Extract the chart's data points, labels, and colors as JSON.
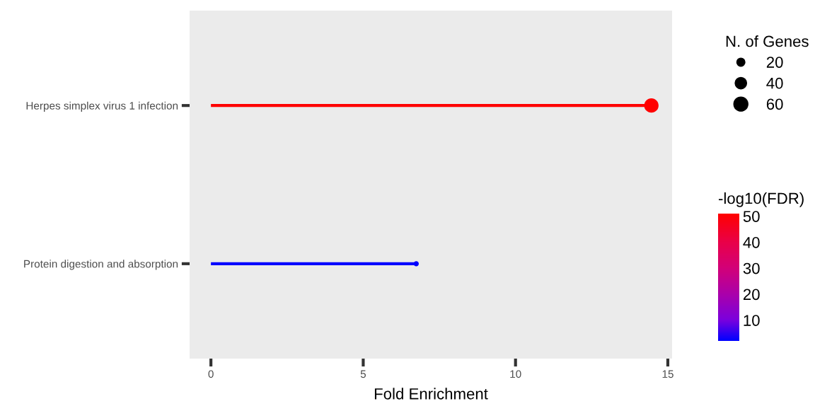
{
  "chart_data": {
    "type": "lollipop",
    "orientation": "horizontal",
    "categories": [
      "Herpes simplex virus 1 infection",
      "Protein digestion and absorption"
    ],
    "values": [
      14.46,
      6.74
    ],
    "sizes": [
      62,
      8
    ],
    "size_legend": [
      20,
      40,
      60
    ],
    "legend_title": "N. of Genes",
    "cvalues": [
      51,
      2
    ],
    "clim": [
      2,
      51
    ],
    "cticks": [
      10,
      20,
      30,
      40,
      50
    ],
    "clabel": "-log10(FDR)",
    "colors": [
      "#ff0000",
      "#0000ff"
    ],
    "xlabel": "Fold Enrichment",
    "xlim": [
      -0.7,
      15.14
    ],
    "xticks": [
      0,
      5,
      10,
      15
    ],
    "marker": "circle",
    "grid": false
  }
}
